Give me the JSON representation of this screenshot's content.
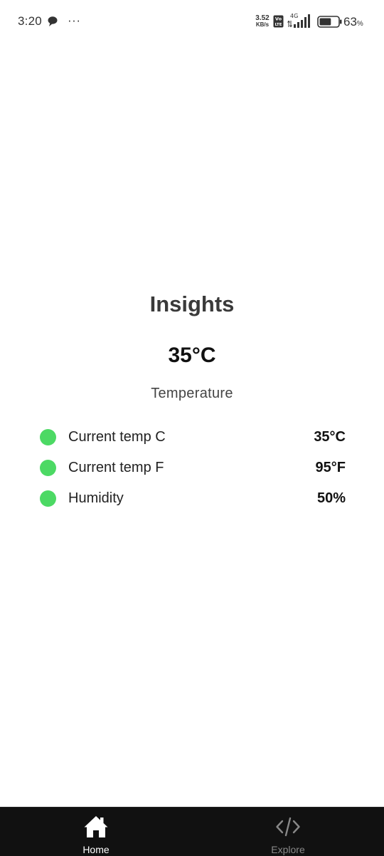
{
  "status_bar": {
    "time": "3:20",
    "more_indicator": "···",
    "net_speed_value": "3.52",
    "net_speed_unit": "KB/s",
    "volte_badge": "Vo LTE",
    "network_type": "4G",
    "battery_percent": "63",
    "battery_unit": "%",
    "battery_level": 0.63,
    "icons": [
      "chat-bubble-icon",
      "volte-icon",
      "signal-icon",
      "battery-icon"
    ]
  },
  "insights": {
    "title": "Insights",
    "main_value": "35°C",
    "main_label": "Temperature",
    "indicator_color": "#4cd964",
    "stats": [
      {
        "label": "Current temp C",
        "value": "35°C"
      },
      {
        "label": "Current temp F",
        "value": "95°F"
      },
      {
        "label": "Humidity",
        "value": "50%"
      }
    ]
  },
  "bottom_nav": {
    "background": "#111111",
    "items": [
      {
        "label": "Home",
        "icon": "home-icon",
        "active": true
      },
      {
        "label": "Explore",
        "icon": "code-icon",
        "active": false
      }
    ]
  }
}
